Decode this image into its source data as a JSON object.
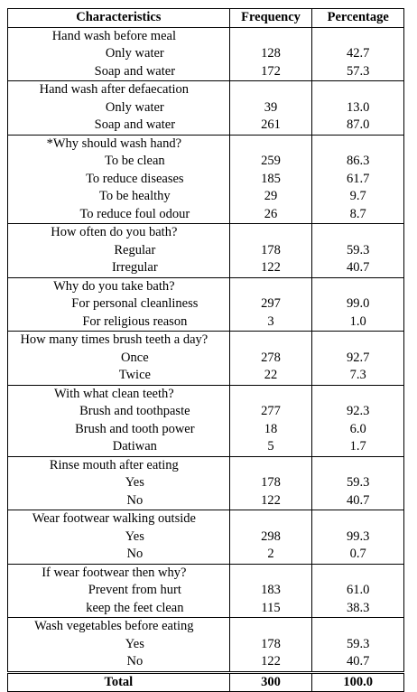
{
  "table": {
    "header": [
      "Characteristics",
      "Frequency",
      "Percentage"
    ],
    "groups": [
      {
        "title": "Hand wash before meal",
        "rows": [
          [
            "Only water",
            "128",
            "42.7"
          ],
          [
            "Soap and water",
            "172",
            "57.3"
          ]
        ]
      },
      {
        "title": "Hand wash after defaecation",
        "rows": [
          [
            "Only water",
            "39",
            "13.0"
          ],
          [
            "Soap and water",
            "261",
            "87.0"
          ]
        ]
      },
      {
        "title": "*Why should wash hand?",
        "rows": [
          [
            "To be clean",
            "259",
            "86.3"
          ],
          [
            "To reduce diseases",
            "185",
            "61.7"
          ],
          [
            "To be healthy",
            "29",
            "9.7"
          ],
          [
            "To reduce foul odour",
            "26",
            "8.7"
          ]
        ]
      },
      {
        "title": "How often do you bath?",
        "rows": [
          [
            "Regular",
            "178",
            "59.3"
          ],
          [
            "Irregular",
            "122",
            "40.7"
          ]
        ]
      },
      {
        "title": "Why do you take bath?",
        "rows": [
          [
            "For personal cleanliness",
            "297",
            "99.0"
          ],
          [
            "For religious reason",
            "3",
            "1.0"
          ]
        ]
      },
      {
        "title": "How many times brush teeth a day?",
        "rows": [
          [
            "Once",
            "278",
            "92.7"
          ],
          [
            "Twice",
            "22",
            "7.3"
          ]
        ]
      },
      {
        "title": "With what clean teeth?",
        "rows": [
          [
            "Brush and toothpaste",
            "277",
            "92.3"
          ],
          [
            "Brush and tooth power",
            "18",
            "6.0"
          ],
          [
            "Datiwan",
            "5",
            "1.7"
          ]
        ]
      },
      {
        "title": "Rinse mouth after eating",
        "rows": [
          [
            "Yes",
            "178",
            "59.3"
          ],
          [
            "No",
            "122",
            "40.7"
          ]
        ]
      },
      {
        "title": "Wear footwear walking outside",
        "rows": [
          [
            "Yes",
            "298",
            "99.3"
          ],
          [
            "No",
            "2",
            "0.7"
          ]
        ]
      },
      {
        "title": "If wear footwear then why?",
        "rows": [
          [
            "Prevent from hurt",
            "183",
            "61.0"
          ],
          [
            "keep the feet clean",
            "115",
            "38.3"
          ]
        ]
      },
      {
        "title": "Wash vegetables before eating",
        "rows": [
          [
            "Yes",
            "178",
            "59.3"
          ],
          [
            "No",
            "122",
            "40.7"
          ]
        ]
      }
    ],
    "total": [
      "Total",
      "300",
      "100.0"
    ]
  }
}
